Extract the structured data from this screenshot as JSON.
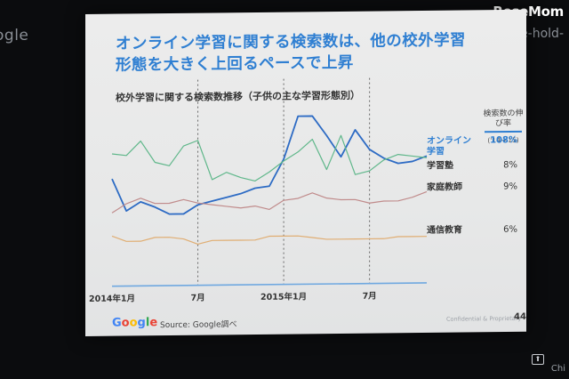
{
  "background_edges": {
    "left_text": "ogle",
    "right_text": "time-hold-",
    "corner_label": "Chi",
    "corner_button_glyph": "⬆"
  },
  "watermark": "ReseMom",
  "slide": {
    "title_line1": "オンライン学習に関する検索数は、他の校外学習",
    "title_line2": "形態を大きく上回るペースで上昇",
    "footer": {
      "logo_letters": [
        {
          "ch": "G",
          "color": "#4285f4"
        },
        {
          "ch": "o",
          "color": "#ea4335"
        },
        {
          "ch": "o",
          "color": "#fbbc05"
        },
        {
          "ch": "g",
          "color": "#4285f4"
        },
        {
          "ch": "l",
          "color": "#34a853"
        },
        {
          "ch": "e",
          "color": "#ea4335"
        }
      ],
      "source": "Source: Google調べ",
      "confidential": "Confidential & Proprietary",
      "page_number": "44"
    }
  },
  "chart_data": {
    "type": "line",
    "title": "校外学習に関する検索数推移（子供の主な学習形態別）",
    "x_tick_labels": [
      "2014年1月",
      "7月",
      "2015年1月",
      "7月"
    ],
    "x_tick_indices": [
      0,
      6,
      12,
      18
    ],
    "x_count": 23,
    "ylim": [
      0,
      100
    ],
    "grid": "dashed vertical lines at x tick positions",
    "legend": "right, inline labels at line ends",
    "growth_header": "検索数の伸び率",
    "growth_period": "('14→'15)",
    "series": [
      {
        "name": "オンライン学習",
        "label_lines": [
          "オンライン",
          "学習"
        ],
        "growth": "108%",
        "color": "#2d6bc4",
        "label_color": "#2f7fd2",
        "values": [
          60,
          42,
          47,
          44,
          40,
          40,
          45,
          47,
          49,
          51,
          54,
          55,
          70,
          94,
          94,
          83,
          71,
          86,
          75,
          70,
          67,
          68,
          71
        ]
      },
      {
        "name": "学習塾",
        "growth": "8%",
        "color": "#5fb78a",
        "label_color": "#333333",
        "values": [
          74,
          73,
          81,
          69,
          67,
          78,
          81,
          59,
          63,
          60,
          58,
          63,
          69,
          74,
          81,
          64,
          83,
          61,
          63,
          69,
          72,
          71,
          70
        ]
      },
      {
        "name": "家庭教師",
        "growth": "9%",
        "color": "#c08b8b",
        "label_color": "#333333",
        "values": [
          41,
          46,
          49,
          46,
          46,
          48,
          46,
          45,
          44,
          43,
          44,
          42,
          47,
          48,
          51,
          48,
          47,
          47,
          45,
          46,
          46,
          48,
          51
        ]
      },
      {
        "name": "通信教育",
        "growth": "6%",
        "color": "#e0ad72",
        "label_color": "#333333",
        "values": [
          28,
          25,
          25,
          27,
          27,
          26,
          23,
          25,
          25,
          25,
          25,
          27,
          27,
          27,
          26,
          25,
          25,
          25,
          25,
          25,
          26,
          26,
          26
        ]
      }
    ]
  }
}
